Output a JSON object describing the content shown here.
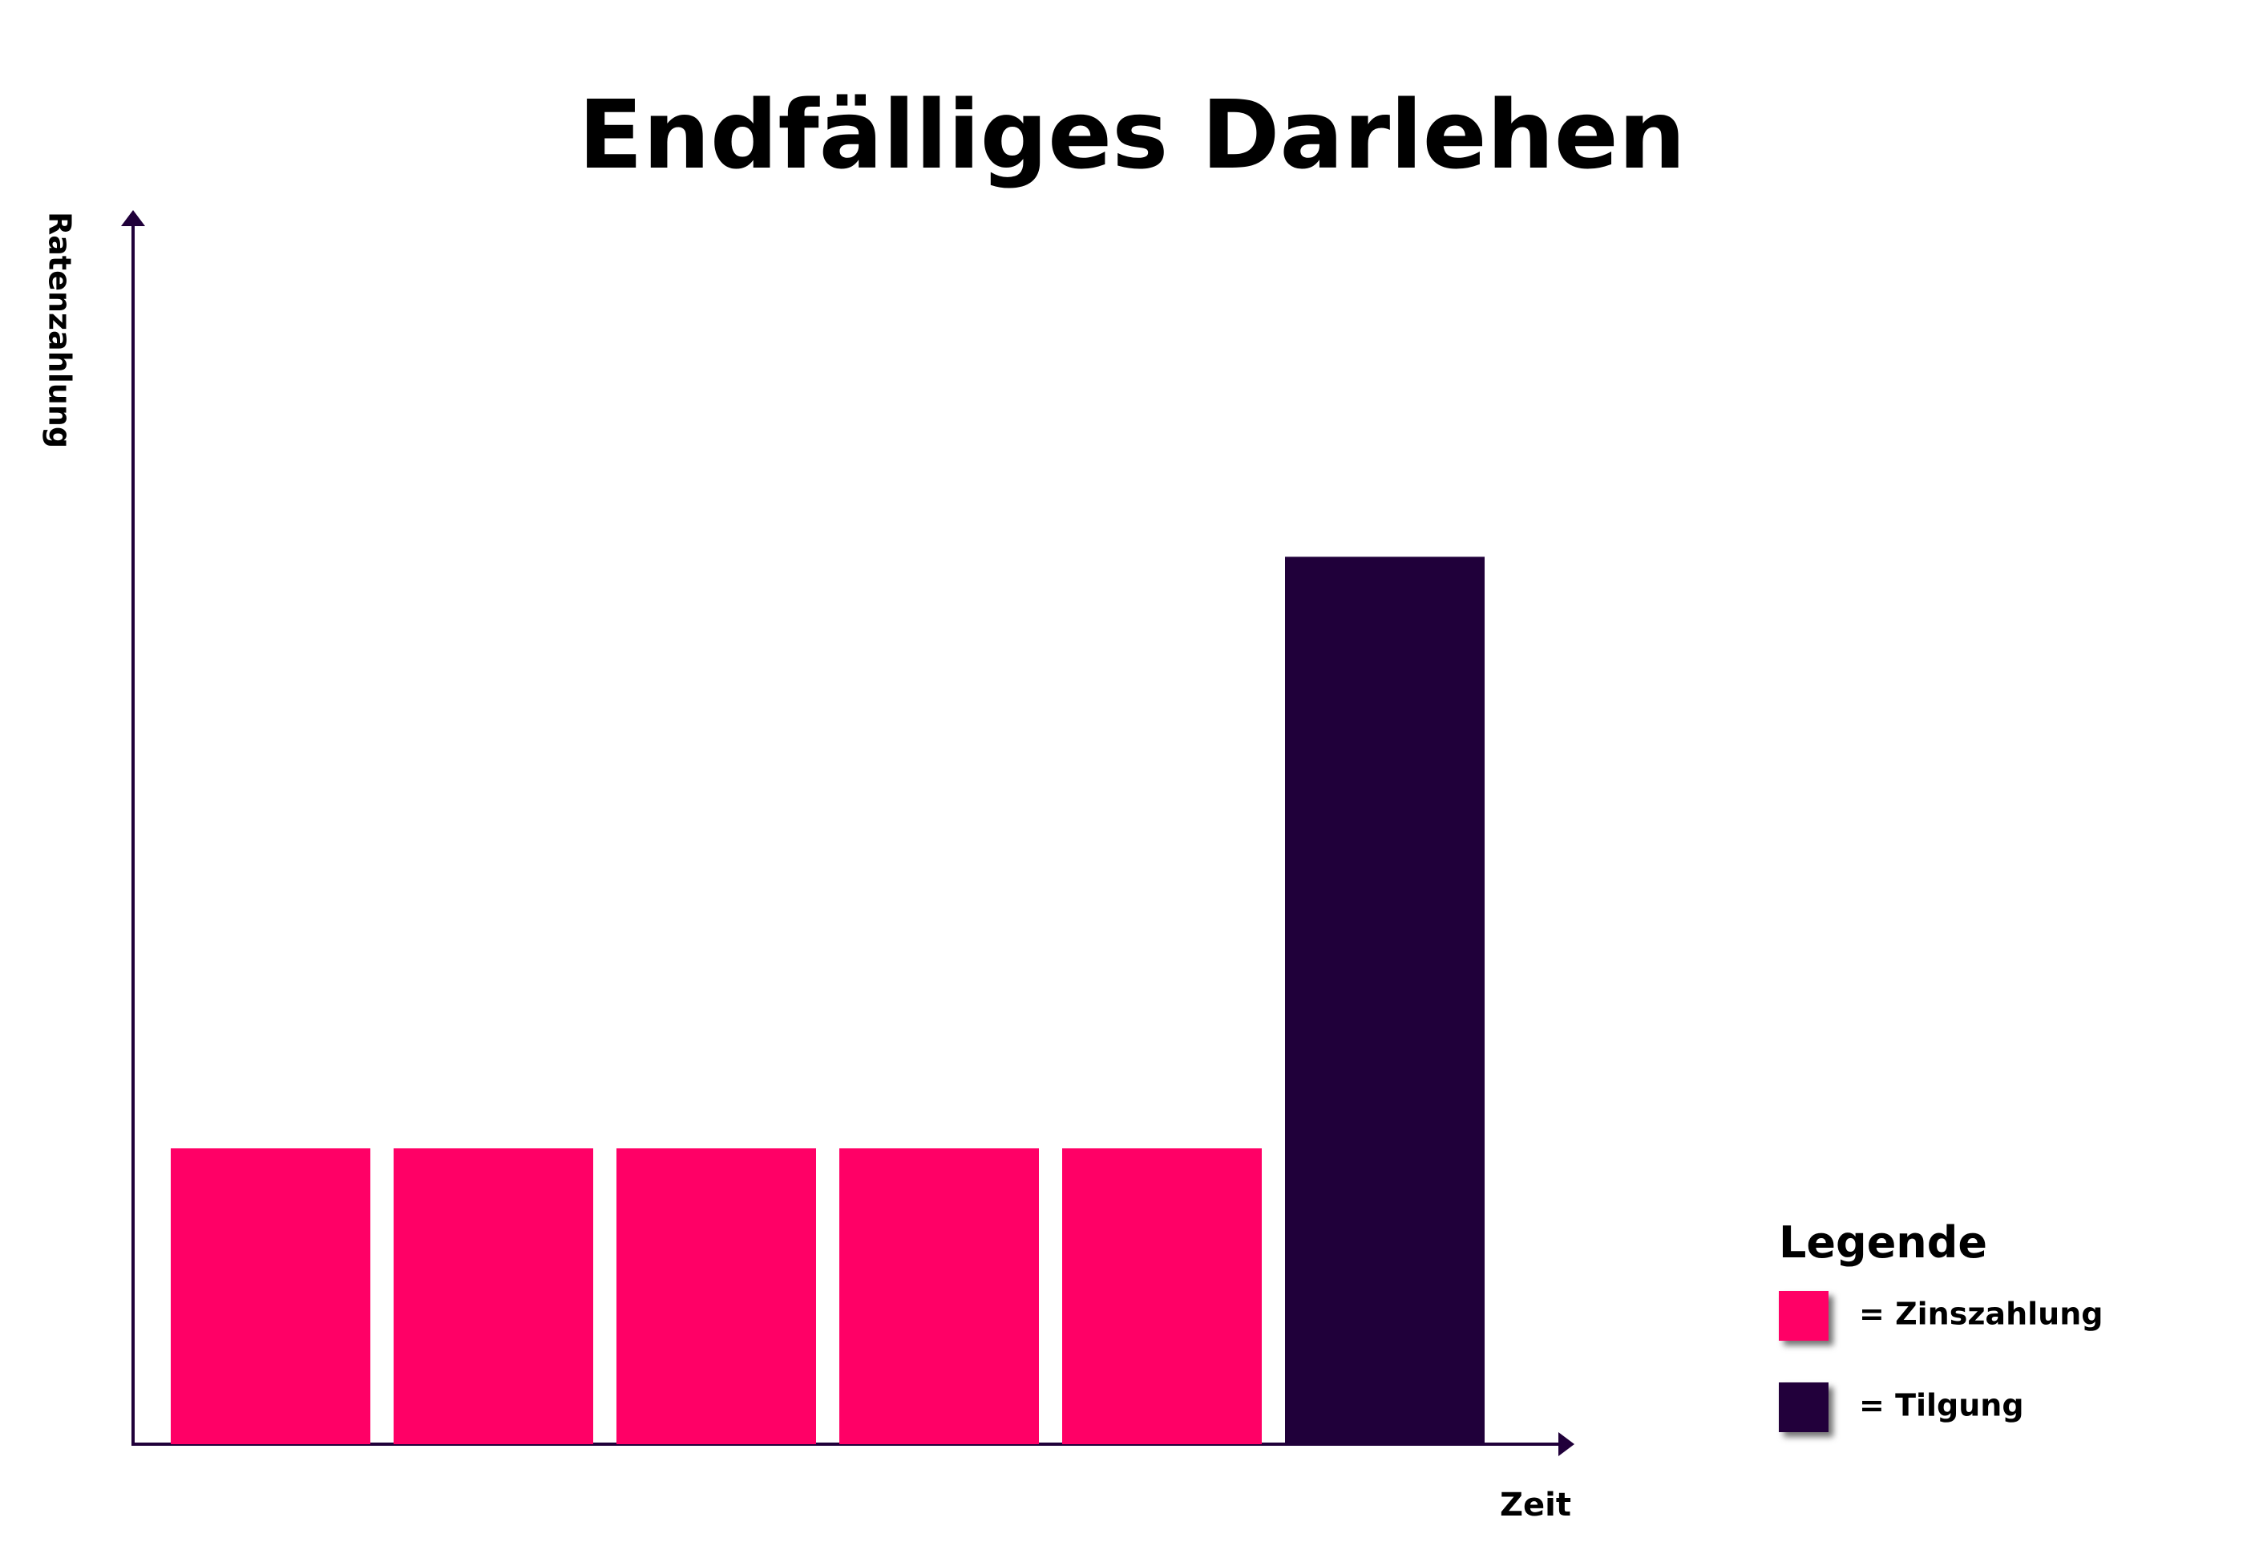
{
  "chart_data": {
    "type": "bar",
    "title": "Endfälliges Darlehen",
    "y_label": "Ratenzahlung",
    "x_label": "Zeit",
    "categories": [
      null,
      null,
      null,
      null,
      null,
      null
    ],
    "series": [
      {
        "name": "= Zinszahlung",
        "color": "#ff0066",
        "values": [
          24,
          24,
          24,
          24,
          24,
          null
        ]
      },
      {
        "name": "= Tilgung",
        "color": "#20003a",
        "values": [
          null,
          null,
          null,
          null,
          null,
          72
        ]
      }
    ],
    "legend_title": "Legende",
    "ylim": [
      0,
      100
    ],
    "grid": false
  }
}
